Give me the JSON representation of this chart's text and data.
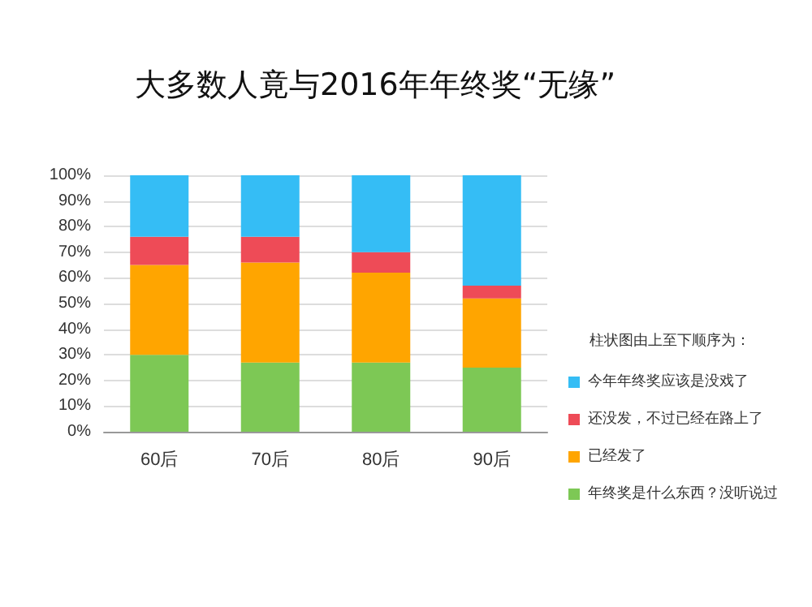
{
  "chart_data": {
    "type": "bar",
    "title": "大多数人竟与2016年年终奖“无缘”",
    "stacked": true,
    "categories": [
      "60后",
      "70后",
      "80后",
      "90后"
    ],
    "series": [
      {
        "name": "年终奖是什么东西？没听说过",
        "color": "#7dc855",
        "values": [
          30,
          27,
          27,
          25
        ]
      },
      {
        "name": "已经发了",
        "color": "#ffa500",
        "values": [
          35,
          39,
          35,
          27
        ]
      },
      {
        "name": "还没发，不过已经在路上了",
        "color": "#ee4b57",
        "values": [
          11,
          10,
          8,
          5
        ]
      },
      {
        "name": "今年年终奖应该是没戏了",
        "color": "#35bdf5",
        "values": [
          24,
          24,
          30,
          43
        ]
      }
    ],
    "legend_title": "柱状图由上至下顺序为：",
    "legend": "right",
    "grid": "y",
    "ylim": [
      0,
      100
    ],
    "yticks": [
      {
        "value": 0,
        "label": "0%"
      },
      {
        "value": 10,
        "label": "10%"
      },
      {
        "value": 20,
        "label": "20%"
      },
      {
        "value": 30,
        "label": "30%"
      },
      {
        "value": 40,
        "label": "40%"
      },
      {
        "value": 50,
        "label": "50%"
      },
      {
        "value": 60,
        "label": "60%"
      },
      {
        "value": 70,
        "label": "70%"
      },
      {
        "value": 80,
        "label": "80%"
      },
      {
        "value": 90,
        "label": "90%"
      },
      {
        "value": 100,
        "label": "100%"
      }
    ]
  }
}
